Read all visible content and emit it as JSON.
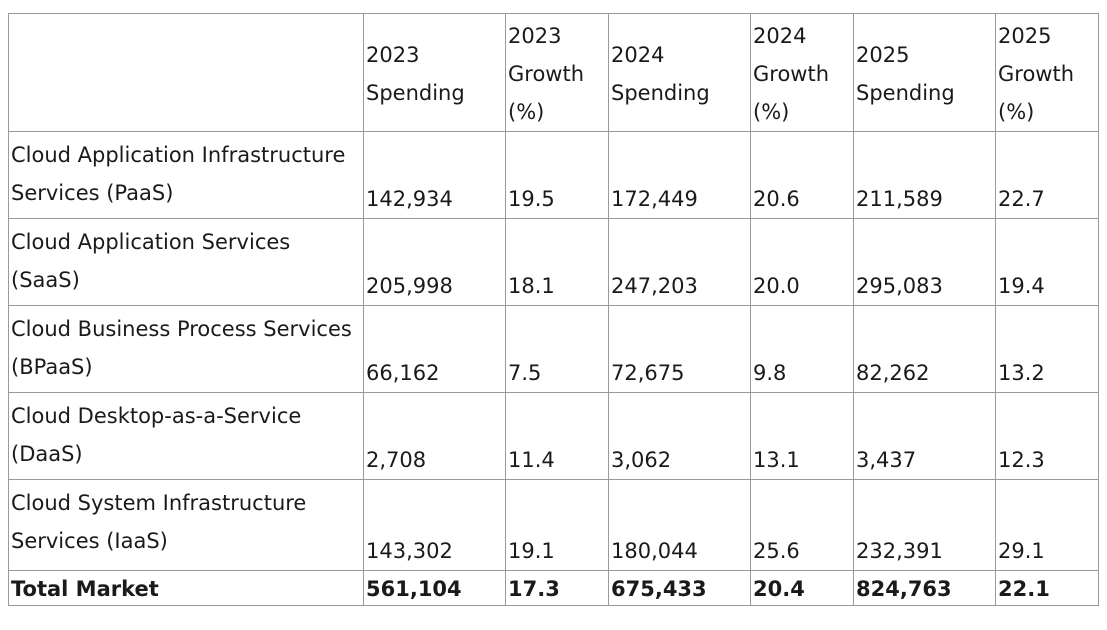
{
  "table": {
    "headers": [
      "",
      "2023 Spending",
      "2023 Growth (%)",
      "2024 Spending",
      "2024 Growth (%)",
      "2025 Spending",
      "2025 Growth (%)"
    ],
    "header_lines": [
      [],
      [
        "2023",
        "Spending"
      ],
      [
        "2023",
        "Growth",
        "(%)"
      ],
      [
        "2024",
        "Spending"
      ],
      [
        "2024",
        "Growth",
        "(%)"
      ],
      [
        "2025",
        "Spending"
      ],
      [
        "2025",
        "Growth",
        "(%)"
      ]
    ],
    "rows": [
      {
        "label": "Cloud Application Infrastructure Services (PaaS)",
        "values": [
          "142,934",
          "19.5",
          "172,449",
          "20.6",
          "211,589",
          "22.7"
        ]
      },
      {
        "label": "Cloud Application Services (SaaS)",
        "values": [
          "205,998",
          "18.1",
          "247,203",
          "20.0",
          "295,083",
          "19.4"
        ]
      },
      {
        "label": "Cloud Business Process Services (BPaaS)",
        "values": [
          "66,162",
          "7.5",
          "72,675",
          "9.8",
          "82,262",
          "13.2"
        ]
      },
      {
        "label": "Cloud Desktop-as-a-Service (DaaS)",
        "values": [
          "2,708",
          "11.4",
          "3,062",
          "13.1",
          "3,437",
          "12.3"
        ]
      },
      {
        "label": "Cloud System Infrastructure Services (IaaS)",
        "values": [
          "143,302",
          "19.1",
          "180,044",
          "25.6",
          "232,391",
          "29.1"
        ]
      }
    ],
    "total": {
      "label": "Total Market",
      "values": [
        "561,104",
        "17.3",
        "675,433",
        "20.4",
        "824,763",
        "22.1"
      ]
    }
  }
}
